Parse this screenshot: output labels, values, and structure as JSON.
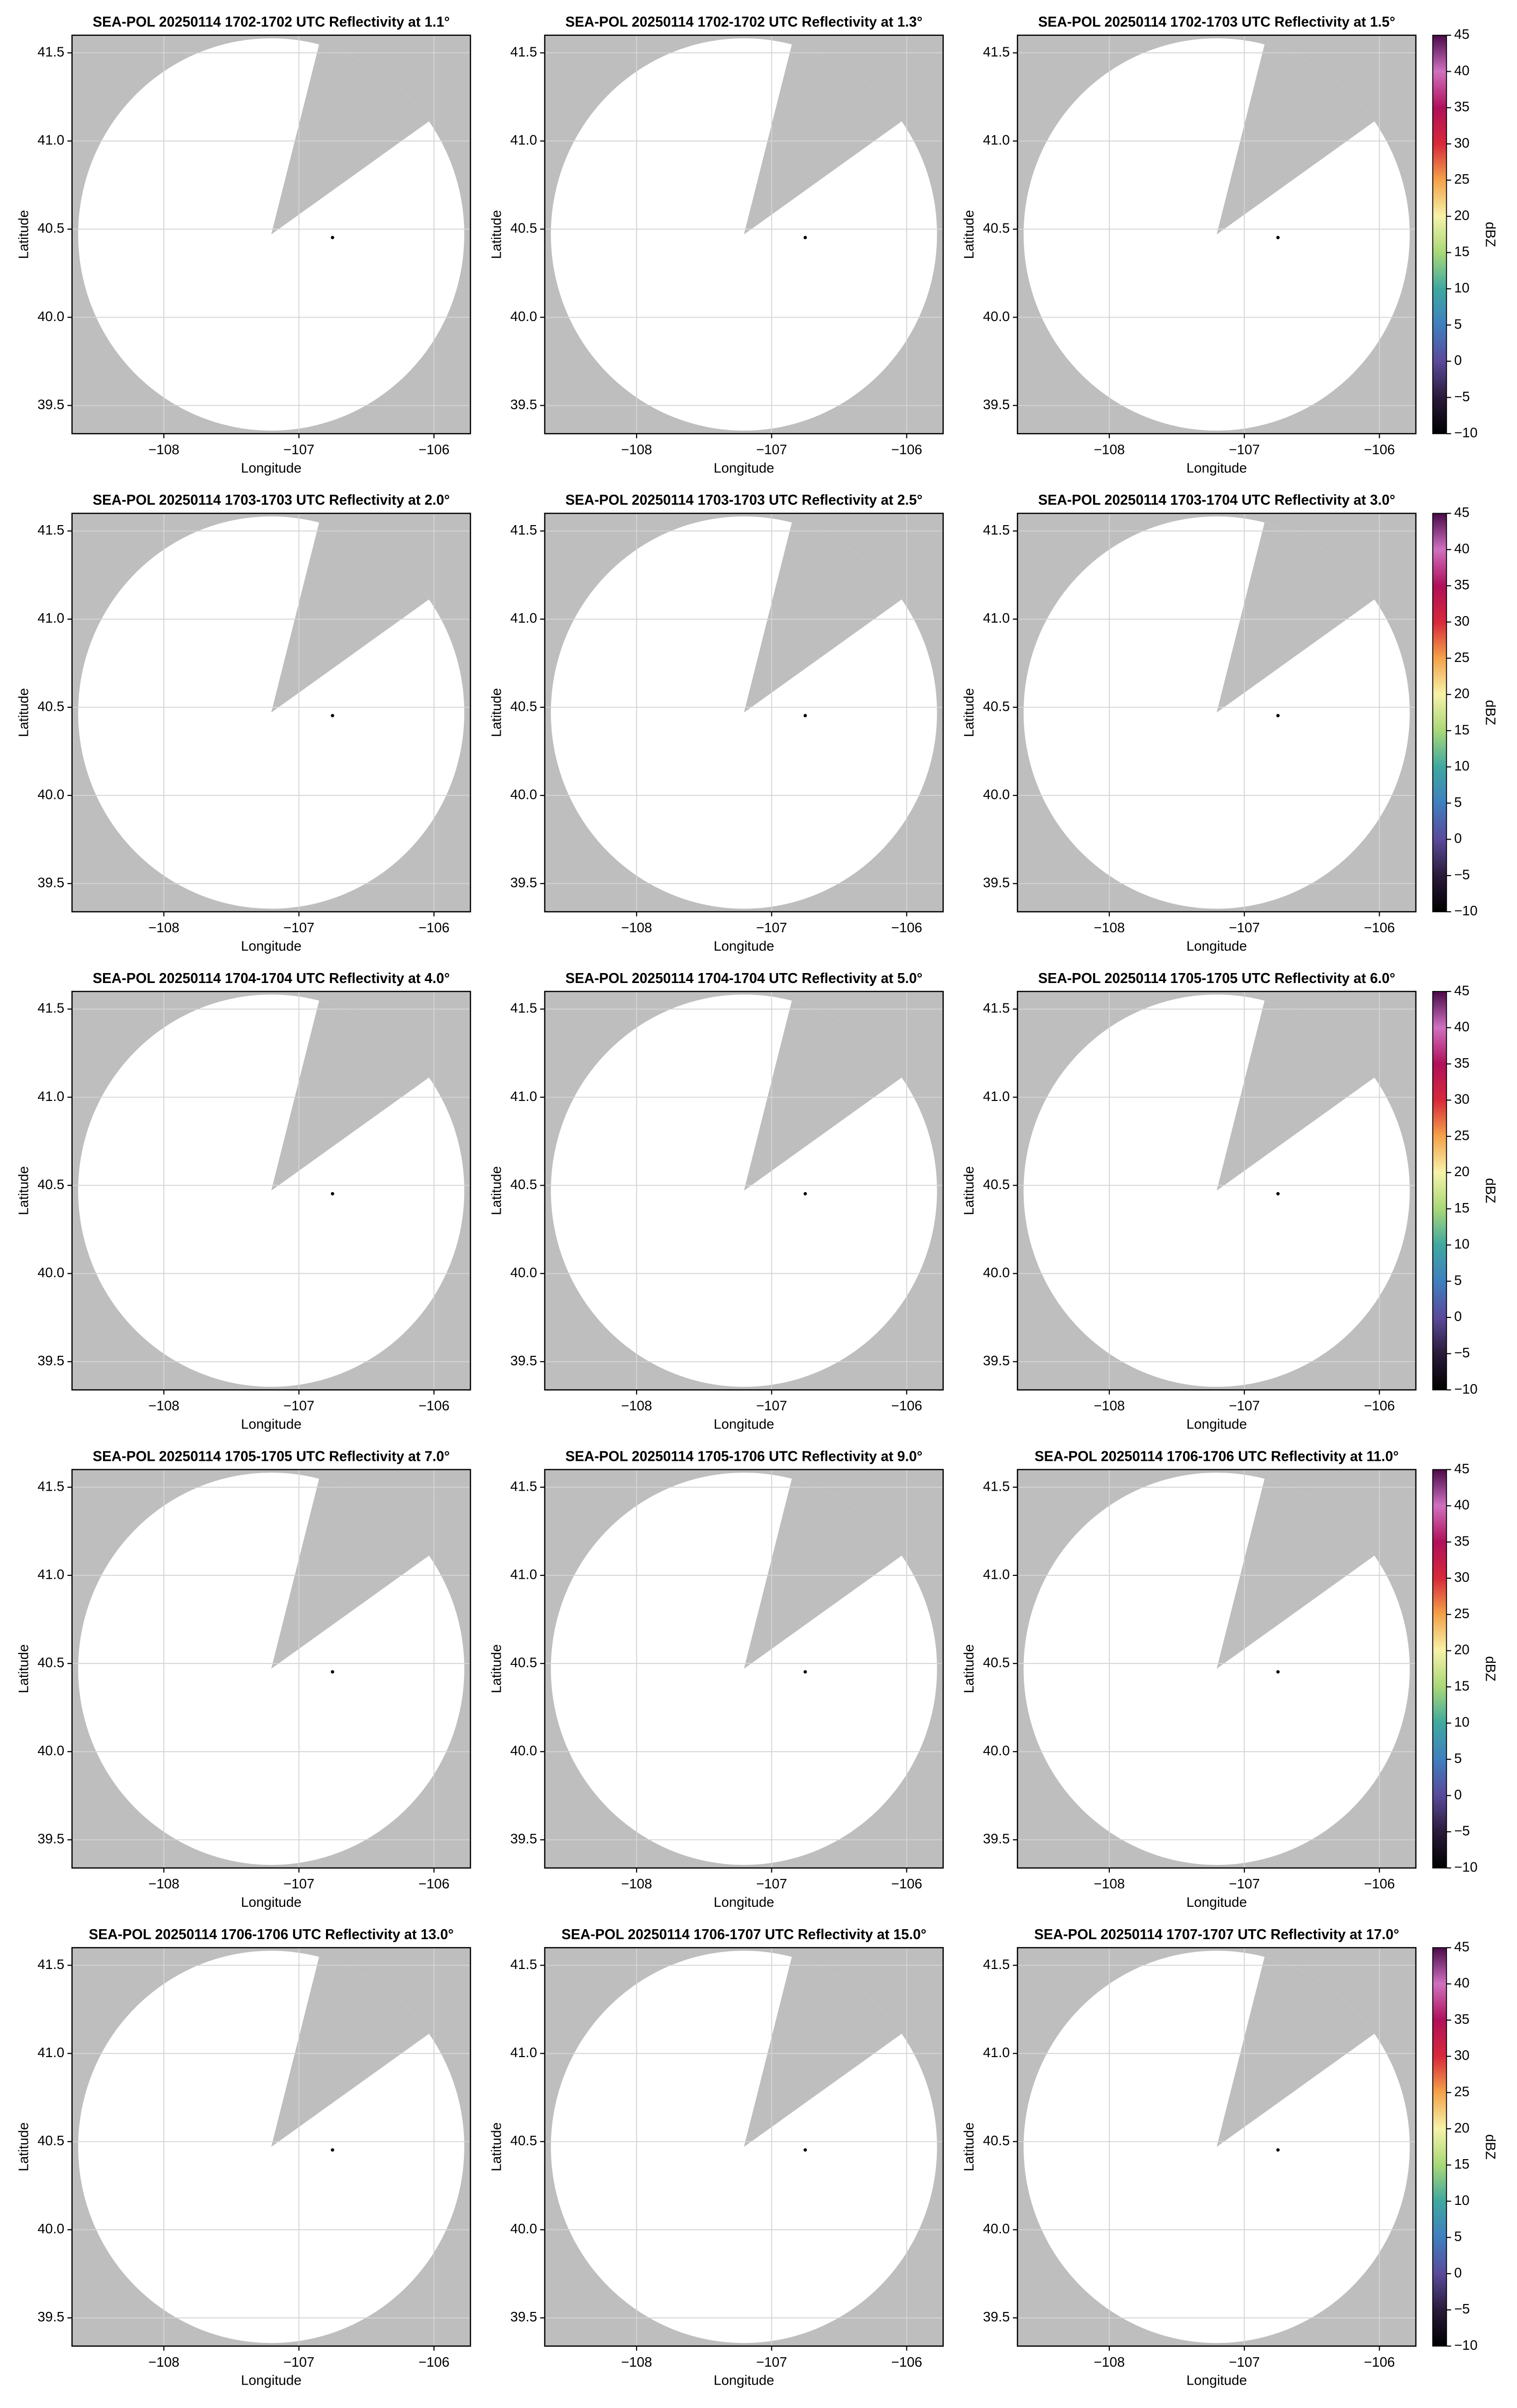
{
  "chart_data": [
    {
      "type": "ppi",
      "title": "SEA-POL 20250114 1702-1702 UTC Reflectivity at 1.1°",
      "x_label": "Longitude",
      "y_label": "Latitude",
      "xlim": [
        -108.68,
        -105.73
      ],
      "ylim": [
        39.34,
        41.6
      ],
      "xticks": [
        {
          "value": -108,
          "label": "−108"
        },
        {
          "value": -107,
          "label": "−107"
        },
        {
          "value": -106,
          "label": "−106"
        }
      ],
      "yticks": [
        39.5,
        {
          "value": 40,
          "label": "40.0"
        },
        40.5,
        {
          "value": 41,
          "label": "41.0"
        },
        41.5
      ],
      "grid": true
    },
    {
      "type": "ppi",
      "title": "SEA-POL 20250114 1702-1702 UTC Reflectivity at 1.3°",
      "x_label": "Longitude",
      "y_label": "Latitude",
      "xlim": [
        -108.68,
        -105.73
      ],
      "ylim": [
        39.34,
        41.6
      ],
      "xticks": [
        {
          "value": -108,
          "label": "−108"
        },
        {
          "value": -107,
          "label": "−107"
        },
        {
          "value": -106,
          "label": "−106"
        }
      ],
      "yticks": [
        39.5,
        {
          "value": 40,
          "label": "40.0"
        },
        40.5,
        {
          "value": 41,
          "label": "41.0"
        },
        41.5
      ],
      "grid": true
    },
    {
      "type": "ppi",
      "title": "SEA-POL 20250114 1702-1703 UTC Reflectivity at 1.5°",
      "x_label": "Longitude",
      "y_label": "Latitude",
      "xlim": [
        -108.68,
        -105.73
      ],
      "ylim": [
        39.34,
        41.6
      ],
      "xticks": [
        {
          "value": -108,
          "label": "−108"
        },
        {
          "value": -107,
          "label": "−107"
        },
        {
          "value": -106,
          "label": "−106"
        }
      ],
      "yticks": [
        39.5,
        {
          "value": 40,
          "label": "40.0"
        },
        40.5,
        {
          "value": 41,
          "label": "41.0"
        },
        41.5
      ],
      "grid": true,
      "colorbar": {
        "label": "dBZ",
        "lim": [
          -10,
          45
        ],
        "ticks": [
          {
            "value": -10,
            "label": "−10"
          },
          {
            "value": -5,
            "label": "−5"
          },
          0,
          5,
          10,
          15,
          20,
          25,
          30,
          35,
          40,
          45
        ],
        "colormap": [
          "#000000",
          "#2a1a3a",
          "#5a4a9a",
          "#3f7fbf",
          "#3fa8a0",
          "#a9d878",
          "#f6f2a8",
          "#f4a24a",
          "#d8283a",
          "#b0105a",
          "#d070c0",
          "#4a0a4a"
        ]
      }
    },
    {
      "type": "ppi",
      "title": "SEA-POL 20250114 1703-1703 UTC Reflectivity at 2.0°",
      "x_label": "Longitude",
      "y_label": "Latitude",
      "xlim": [
        -108.68,
        -105.73
      ],
      "ylim": [
        39.34,
        41.6
      ],
      "xticks": [
        {
          "value": -108,
          "label": "−108"
        },
        {
          "value": -107,
          "label": "−107"
        },
        {
          "value": -106,
          "label": "−106"
        }
      ],
      "yticks": [
        39.5,
        {
          "value": 40,
          "label": "40.0"
        },
        40.5,
        {
          "value": 41,
          "label": "41.0"
        },
        41.5
      ],
      "grid": true
    },
    {
      "type": "ppi",
      "title": "SEA-POL 20250114 1703-1703 UTC Reflectivity at 2.5°",
      "x_label": "Longitude",
      "y_label": "Latitude",
      "xlim": [
        -108.68,
        -105.73
      ],
      "ylim": [
        39.34,
        41.6
      ],
      "xticks": [
        {
          "value": -108,
          "label": "−108"
        },
        {
          "value": -107,
          "label": "−107"
        },
        {
          "value": -106,
          "label": "−106"
        }
      ],
      "yticks": [
        39.5,
        {
          "value": 40,
          "label": "40.0"
        },
        40.5,
        {
          "value": 41,
          "label": "41.0"
        },
        41.5
      ],
      "grid": true
    },
    {
      "type": "ppi",
      "title": "SEA-POL 20250114 1703-1704 UTC Reflectivity at 3.0°",
      "x_label": "Longitude",
      "y_label": "Latitude",
      "xlim": [
        -108.68,
        -105.73
      ],
      "ylim": [
        39.34,
        41.6
      ],
      "xticks": [
        {
          "value": -108,
          "label": "−108"
        },
        {
          "value": -107,
          "label": "−107"
        },
        {
          "value": -106,
          "label": "−106"
        }
      ],
      "yticks": [
        39.5,
        {
          "value": 40,
          "label": "40.0"
        },
        40.5,
        {
          "value": 41,
          "label": "41.0"
        },
        41.5
      ],
      "grid": true,
      "colorbar": {
        "label": "dBZ",
        "lim": [
          -10,
          45
        ],
        "ticks": [
          {
            "value": -10,
            "label": "−10"
          },
          {
            "value": -5,
            "label": "−5"
          },
          0,
          5,
          10,
          15,
          20,
          25,
          30,
          35,
          40,
          45
        ],
        "colormap": [
          "#000000",
          "#2a1a3a",
          "#5a4a9a",
          "#3f7fbf",
          "#3fa8a0",
          "#a9d878",
          "#f6f2a8",
          "#f4a24a",
          "#d8283a",
          "#b0105a",
          "#d070c0",
          "#4a0a4a"
        ]
      }
    },
    {
      "type": "ppi",
      "title": "SEA-POL 20250114 1704-1704 UTC Reflectivity at 4.0°",
      "x_label": "Longitude",
      "y_label": "Latitude",
      "xlim": [
        -108.68,
        -105.73
      ],
      "ylim": [
        39.34,
        41.6
      ],
      "xticks": [
        {
          "value": -108,
          "label": "−108"
        },
        {
          "value": -107,
          "label": "−107"
        },
        {
          "value": -106,
          "label": "−106"
        }
      ],
      "yticks": [
        39.5,
        {
          "value": 40,
          "label": "40.0"
        },
        40.5,
        {
          "value": 41,
          "label": "41.0"
        },
        41.5
      ],
      "grid": true
    },
    {
      "type": "ppi",
      "title": "SEA-POL 20250114 1704-1704 UTC Reflectivity at 5.0°",
      "x_label": "Longitude",
      "y_label": "Latitude",
      "xlim": [
        -108.68,
        -105.73
      ],
      "ylim": [
        39.34,
        41.6
      ],
      "xticks": [
        {
          "value": -108,
          "label": "−108"
        },
        {
          "value": -107,
          "label": "−107"
        },
        {
          "value": -106,
          "label": "−106"
        }
      ],
      "yticks": [
        39.5,
        {
          "value": 40,
          "label": "40.0"
        },
        40.5,
        {
          "value": 41,
          "label": "41.0"
        },
        41.5
      ],
      "grid": true
    },
    {
      "type": "ppi",
      "title": "SEA-POL 20250114 1705-1705 UTC Reflectivity at 6.0°",
      "x_label": "Longitude",
      "y_label": "Latitude",
      "xlim": [
        -108.68,
        -105.73
      ],
      "ylim": [
        39.34,
        41.6
      ],
      "xticks": [
        {
          "value": -108,
          "label": "−108"
        },
        {
          "value": -107,
          "label": "−107"
        },
        {
          "value": -106,
          "label": "−106"
        }
      ],
      "yticks": [
        39.5,
        {
          "value": 40,
          "label": "40.0"
        },
        40.5,
        {
          "value": 41,
          "label": "41.0"
        },
        41.5
      ],
      "grid": true,
      "colorbar": {
        "label": "dBZ",
        "lim": [
          -10,
          45
        ],
        "ticks": [
          {
            "value": -10,
            "label": "−10"
          },
          {
            "value": -5,
            "label": "−5"
          },
          0,
          5,
          10,
          15,
          20,
          25,
          30,
          35,
          40,
          45
        ],
        "colormap": [
          "#000000",
          "#2a1a3a",
          "#5a4a9a",
          "#3f7fbf",
          "#3fa8a0",
          "#a9d878",
          "#f6f2a8",
          "#f4a24a",
          "#d8283a",
          "#b0105a",
          "#d070c0",
          "#4a0a4a"
        ]
      }
    },
    {
      "type": "ppi",
      "title": "SEA-POL 20250114 1705-1705 UTC Reflectivity at 7.0°",
      "x_label": "Longitude",
      "y_label": "Latitude",
      "xlim": [
        -108.68,
        -105.73
      ],
      "ylim": [
        39.34,
        41.6
      ],
      "xticks": [
        {
          "value": -108,
          "label": "−108"
        },
        {
          "value": -107,
          "label": "−107"
        },
        {
          "value": -106,
          "label": "−106"
        }
      ],
      "yticks": [
        39.5,
        {
          "value": 40,
          "label": "40.0"
        },
        40.5,
        {
          "value": 41,
          "label": "41.0"
        },
        41.5
      ],
      "grid": true
    },
    {
      "type": "ppi",
      "title": "SEA-POL 20250114 1705-1706 UTC Reflectivity at 9.0°",
      "x_label": "Longitude",
      "y_label": "Latitude",
      "xlim": [
        -108.68,
        -105.73
      ],
      "ylim": [
        39.34,
        41.6
      ],
      "xticks": [
        {
          "value": -108,
          "label": "−108"
        },
        {
          "value": -107,
          "label": "−107"
        },
        {
          "value": -106,
          "label": "−106"
        }
      ],
      "yticks": [
        39.5,
        {
          "value": 40,
          "label": "40.0"
        },
        40.5,
        {
          "value": 41,
          "label": "41.0"
        },
        41.5
      ],
      "grid": true
    },
    {
      "type": "ppi",
      "title": "SEA-POL 20250114 1706-1706 UTC Reflectivity at 11.0°",
      "x_label": "Longitude",
      "y_label": "Latitude",
      "xlim": [
        -108.68,
        -105.73
      ],
      "ylim": [
        39.34,
        41.6
      ],
      "xticks": [
        {
          "value": -108,
          "label": "−108"
        },
        {
          "value": -107,
          "label": "−107"
        },
        {
          "value": -106,
          "label": "−106"
        }
      ],
      "yticks": [
        39.5,
        {
          "value": 40,
          "label": "40.0"
        },
        40.5,
        {
          "value": 41,
          "label": "41.0"
        },
        41.5
      ],
      "grid": true,
      "colorbar": {
        "label": "dBZ",
        "lim": [
          -10,
          45
        ],
        "ticks": [
          {
            "value": -10,
            "label": "−10"
          },
          {
            "value": -5,
            "label": "−5"
          },
          0,
          5,
          10,
          15,
          20,
          25,
          30,
          35,
          40,
          45
        ],
        "colormap": [
          "#000000",
          "#2a1a3a",
          "#5a4a9a",
          "#3f7fbf",
          "#3fa8a0",
          "#a9d878",
          "#f6f2a8",
          "#f4a24a",
          "#d8283a",
          "#b0105a",
          "#d070c0",
          "#4a0a4a"
        ]
      }
    },
    {
      "type": "ppi",
      "title": "SEA-POL 20250114 1706-1706 UTC Reflectivity at 13.0°",
      "x_label": "Longitude",
      "y_label": "Latitude",
      "xlim": [
        -108.68,
        -105.73
      ],
      "ylim": [
        39.34,
        41.6
      ],
      "xticks": [
        {
          "value": -108,
          "label": "−108"
        },
        {
          "value": -107,
          "label": "−107"
        },
        {
          "value": -106,
          "label": "−106"
        }
      ],
      "yticks": [
        39.5,
        {
          "value": 40,
          "label": "40.0"
        },
        40.5,
        {
          "value": 41,
          "label": "41.0"
        },
        41.5
      ],
      "grid": true
    },
    {
      "type": "ppi",
      "title": "SEA-POL 20250114 1706-1707 UTC Reflectivity at 15.0°",
      "x_label": "Longitude",
      "y_label": "Latitude",
      "xlim": [
        -108.68,
        -105.73
      ],
      "ylim": [
        39.34,
        41.6
      ],
      "xticks": [
        {
          "value": -108,
          "label": "−108"
        },
        {
          "value": -107,
          "label": "−107"
        },
        {
          "value": -106,
          "label": "−106"
        }
      ],
      "yticks": [
        39.5,
        {
          "value": 40,
          "label": "40.0"
        },
        40.5,
        {
          "value": 41,
          "label": "41.0"
        },
        41.5
      ],
      "grid": true
    },
    {
      "type": "ppi",
      "title": "SEA-POL 20250114 1707-1707 UTC Reflectivity at 17.0°",
      "x_label": "Longitude",
      "y_label": "Latitude",
      "xlim": [
        -108.68,
        -105.73
      ],
      "ylim": [
        39.34,
        41.6
      ],
      "xticks": [
        {
          "value": -108,
          "label": "−108"
        },
        {
          "value": -107,
          "label": "−107"
        },
        {
          "value": -106,
          "label": "−106"
        }
      ],
      "yticks": [
        39.5,
        {
          "value": 40,
          "label": "40.0"
        },
        40.5,
        {
          "value": 41,
          "label": "41.0"
        },
        41.5
      ],
      "grid": true,
      "colorbar": {
        "label": "dBZ",
        "lim": [
          -10,
          45
        ],
        "ticks": [
          {
            "value": -10,
            "label": "−10"
          },
          {
            "value": -5,
            "label": "−5"
          },
          0,
          5,
          10,
          15,
          20,
          25,
          30,
          35,
          40,
          45
        ],
        "colormap": [
          "#000000",
          "#2a1a3a",
          "#5a4a9a",
          "#3f7fbf",
          "#3fa8a0",
          "#a9d878",
          "#f6f2a8",
          "#f4a24a",
          "#d8283a",
          "#b0105a",
          "#d070c0",
          "#4a0a4a"
        ]
      }
    }
  ]
}
